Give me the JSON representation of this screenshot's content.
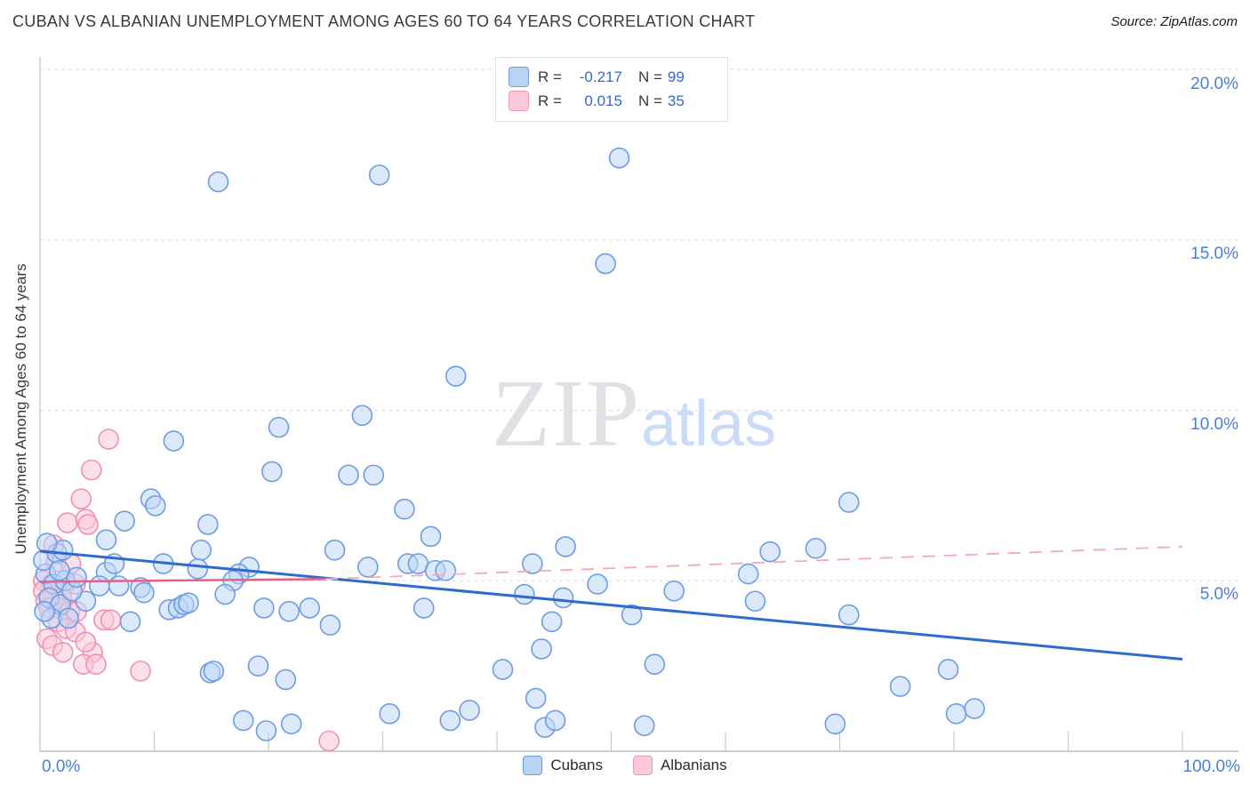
{
  "header": {
    "title": "CUBAN VS ALBANIAN UNEMPLOYMENT AMONG AGES 60 TO 64 YEARS CORRELATION CHART",
    "source": "Source: ZipAtlas.com"
  },
  "y_axis_title": "Unemployment Among Ages 60 to 64 years",
  "watermark": {
    "part1": "ZIP",
    "part2": "atlas"
  },
  "legend_box": {
    "rows": [
      {
        "r_label": "R =",
        "r_value": "-0.217",
        "n_label": "N =",
        "n_value": "99"
      },
      {
        "r_label": "R =",
        "r_value": "0.015",
        "n_label": "N =",
        "n_value": "35"
      }
    ]
  },
  "bottom_legend": {
    "cubans": "Cubans",
    "albanians": "Albanians"
  },
  "x_axis": {
    "min_label": "0.0%",
    "max_label": "100.0%"
  },
  "chart_data": {
    "type": "scatter",
    "title": "CUBAN VS ALBANIAN UNEMPLOYMENT AMONG AGES 60 TO 64 YEARS CORRELATION CHART",
    "xlabel": "",
    "ylabel": "Unemployment Among Ages 60 to 64 years",
    "xlim": [
      0,
      100
    ],
    "ylim": [
      0,
      20.5
    ],
    "grid": true,
    "legend_position": "top-center",
    "y_ticks": [
      {
        "value": 20,
        "label": "20.0%"
      },
      {
        "value": 15,
        "label": "15.0%"
      },
      {
        "value": 10,
        "label": "10.0%"
      },
      {
        "value": 5,
        "label": "5.0%"
      }
    ],
    "x_tick_values": [
      0,
      10,
      20,
      30,
      40,
      50,
      60,
      70,
      80,
      90,
      100
    ],
    "series": [
      {
        "name": "Cubans",
        "r": -0.217,
        "n": 99,
        "points": [
          [
            15.6,
            16.7
          ],
          [
            29.7,
            16.9
          ],
          [
            50.7,
            17.4
          ],
          [
            49.5,
            14.3
          ],
          [
            36.4,
            11.0
          ],
          [
            11.7,
            9.1
          ],
          [
            20.9,
            9.5
          ],
          [
            28.2,
            9.85
          ],
          [
            20.3,
            8.2
          ],
          [
            27.0,
            8.1
          ],
          [
            29.2,
            8.1
          ],
          [
            9.7,
            7.4
          ],
          [
            10.1,
            7.2
          ],
          [
            31.9,
            7.1
          ],
          [
            70.8,
            7.3
          ],
          [
            7.4,
            6.75
          ],
          [
            14.7,
            6.65
          ],
          [
            34.2,
            6.3
          ],
          [
            5.8,
            6.2
          ],
          [
            14.1,
            5.9
          ],
          [
            25.8,
            5.9
          ],
          [
            46.0,
            6.0
          ],
          [
            63.9,
            5.85
          ],
          [
            67.9,
            5.95
          ],
          [
            5.8,
            5.25
          ],
          [
            6.5,
            5.5
          ],
          [
            10.8,
            5.5
          ],
          [
            13.8,
            5.35
          ],
          [
            18.3,
            5.4
          ],
          [
            28.7,
            5.4
          ],
          [
            32.2,
            5.5
          ],
          [
            33.1,
            5.5
          ],
          [
            34.6,
            5.3
          ],
          [
            35.5,
            5.3
          ],
          [
            43.1,
            5.5
          ],
          [
            62.0,
            5.2
          ],
          [
            17.4,
            5.2
          ],
          [
            16.9,
            5.0
          ],
          [
            5.2,
            4.85
          ],
          [
            6.9,
            4.85
          ],
          [
            8.8,
            4.8
          ],
          [
            9.1,
            4.65
          ],
          [
            4.0,
            4.4
          ],
          [
            11.3,
            4.15
          ],
          [
            12.1,
            4.2
          ],
          [
            12.6,
            4.3
          ],
          [
            13.0,
            4.35
          ],
          [
            48.8,
            4.9
          ],
          [
            42.4,
            4.6
          ],
          [
            45.8,
            4.5
          ],
          [
            16.2,
            4.6
          ],
          [
            55.5,
            4.7
          ],
          [
            62.6,
            4.4
          ],
          [
            19.6,
            4.2
          ],
          [
            21.8,
            4.1
          ],
          [
            23.6,
            4.2
          ],
          [
            33.6,
            4.2
          ],
          [
            51.8,
            4.0
          ],
          [
            70.8,
            4.0
          ],
          [
            44.8,
            3.8
          ],
          [
            25.4,
            3.7
          ],
          [
            7.9,
            3.8
          ],
          [
            14.9,
            2.3
          ],
          [
            43.9,
            3.0
          ],
          [
            40.5,
            2.4
          ],
          [
            19.1,
            2.5
          ],
          [
            21.5,
            2.1
          ],
          [
            15.2,
            2.35
          ],
          [
            53.8,
            2.55
          ],
          [
            79.5,
            2.4
          ],
          [
            75.3,
            1.9
          ],
          [
            43.4,
            1.55
          ],
          [
            17.8,
            0.9
          ],
          [
            19.8,
            0.6
          ],
          [
            22.0,
            0.8
          ],
          [
            30.6,
            1.1
          ],
          [
            35.9,
            0.9
          ],
          [
            37.6,
            1.2
          ],
          [
            44.2,
            0.7
          ],
          [
            45.1,
            0.9
          ],
          [
            52.9,
            0.75
          ],
          [
            80.2,
            1.1
          ],
          [
            81.8,
            1.25
          ],
          [
            69.6,
            0.8
          ],
          [
            0.5,
            5.2
          ],
          [
            1.2,
            4.9
          ],
          [
            2.2,
            5.0
          ],
          [
            0.8,
            4.5
          ],
          [
            1.8,
            4.3
          ],
          [
            0.3,
            5.6
          ],
          [
            1.5,
            5.8
          ],
          [
            2.8,
            4.7
          ],
          [
            3.2,
            5.1
          ],
          [
            2.0,
            5.9
          ],
          [
            0.6,
            6.1
          ],
          [
            1.0,
            3.9
          ],
          [
            2.5,
            3.9
          ],
          [
            0.4,
            4.1
          ],
          [
            1.7,
            5.3
          ]
        ]
      },
      {
        "name": "Albanians",
        "r": 0.015,
        "n": 35,
        "points": [
          [
            6.0,
            9.15
          ],
          [
            4.5,
            8.25
          ],
          [
            3.6,
            7.4
          ],
          [
            2.4,
            6.7
          ],
          [
            4.0,
            6.8
          ],
          [
            4.2,
            6.65
          ],
          [
            1.2,
            6.05
          ],
          [
            1.4,
            5.55
          ],
          [
            2.7,
            5.5
          ],
          [
            0.3,
            5.0
          ],
          [
            1.0,
            4.9
          ],
          [
            2.2,
            4.9
          ],
          [
            3.1,
            4.9
          ],
          [
            0.3,
            4.7
          ],
          [
            1.2,
            4.55
          ],
          [
            0.5,
            4.4
          ],
          [
            1.9,
            4.5
          ],
          [
            0.8,
            4.2
          ],
          [
            1.6,
            4.2
          ],
          [
            2.6,
            4.1
          ],
          [
            3.2,
            4.1
          ],
          [
            1.6,
            3.8
          ],
          [
            2.3,
            3.6
          ],
          [
            3.1,
            3.5
          ],
          [
            0.6,
            3.3
          ],
          [
            1.1,
            3.1
          ],
          [
            2.0,
            2.9
          ],
          [
            4.6,
            2.9
          ],
          [
            5.6,
            3.85
          ],
          [
            6.2,
            3.85
          ],
          [
            4.0,
            3.2
          ],
          [
            3.8,
            2.55
          ],
          [
            4.9,
            2.55
          ],
          [
            8.8,
            2.35
          ],
          [
            25.3,
            0.3
          ]
        ]
      }
    ],
    "trend_lines": [
      {
        "series": "Cubans",
        "style": "solid",
        "x1": 0,
        "y1": 5.87,
        "x2": 100,
        "y2": 2.7
      },
      {
        "series": "Albanians",
        "style": "solid",
        "x1": 0,
        "y1": 4.97,
        "x2": 25,
        "y2": 5.05
      },
      {
        "series": "Albanians",
        "style": "dashed",
        "x1": 25,
        "y1": 5.05,
        "x2": 100,
        "y2": 6.0
      }
    ],
    "colors": {
      "cuban_fill": "rgba(190,215,247,0.55)",
      "cuban_stroke": "#6d9ce2",
      "albanian_fill": "rgba(250,200,216,0.55)",
      "albanian_stroke": "#f190b2",
      "cuban_trend": "#2e6bcc",
      "albanian_trend_solid": "#e55f8a",
      "albanian_trend_dashed": "#f2a9bf",
      "gridline": "#dcdcdc",
      "axis": "#bdbdbd",
      "tick_label": "#4a7fd4"
    }
  }
}
